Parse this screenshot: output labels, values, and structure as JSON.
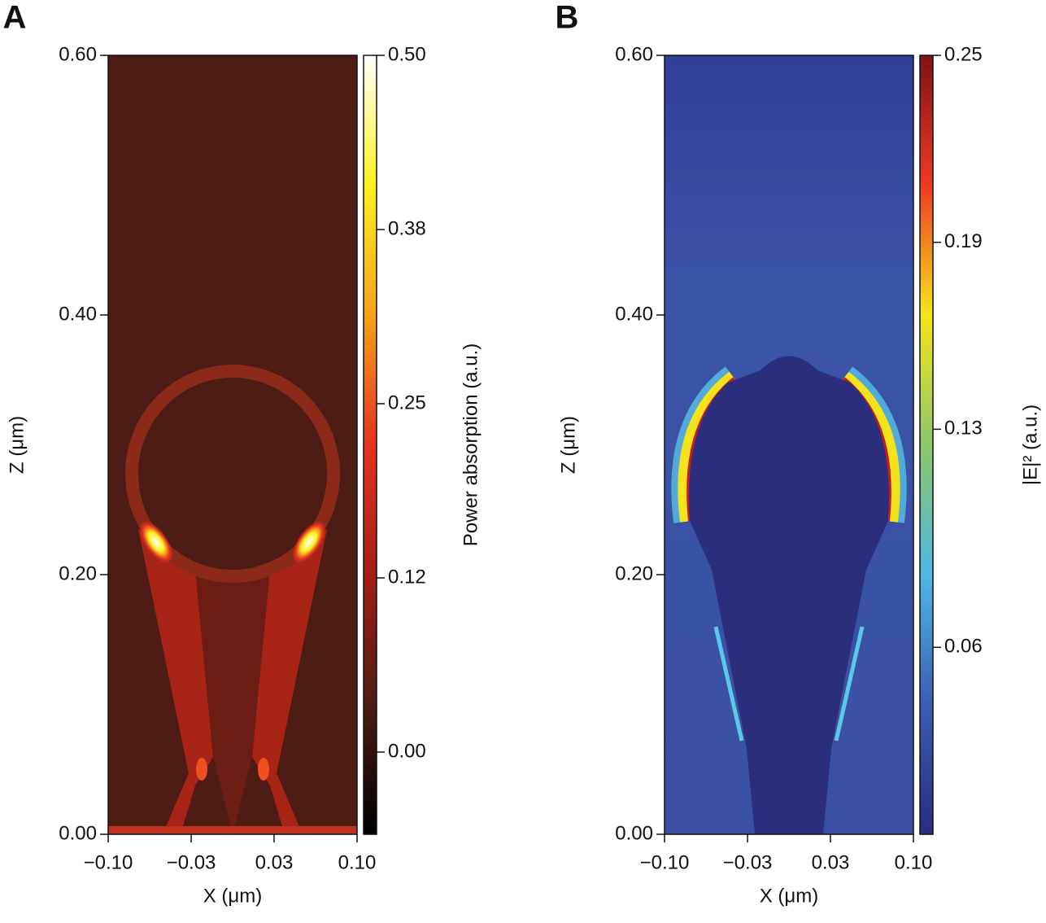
{
  "chart_data": [
    {
      "type": "heatmap",
      "panel": "A",
      "xlabel": "X (μm)",
      "ylabel": "Z (μm)",
      "colorbar_label": "Power absorption (a.u.)",
      "xlim": [
        -0.1,
        0.1
      ],
      "xticks": [
        {
          "value": -0.1,
          "label": "−0.10"
        },
        {
          "value": -0.0333,
          "label": "−0.03"
        },
        {
          "value": 0.0333,
          "label": "0.03"
        },
        {
          "value": 0.1,
          "label": "0.10"
        }
      ],
      "ylim": [
        0,
        0.6
      ],
      "yticks": [
        {
          "value": 0,
          "label": "0.00"
        },
        {
          "value": 0.2,
          "label": "0.20"
        },
        {
          "value": 0.4,
          "label": "0.40"
        },
        {
          "value": 0.6,
          "label": "0.60"
        }
      ],
      "clim": [
        -0.059,
        0.5
      ],
      "cticks": [
        {
          "value": 0,
          "label": "0.00"
        },
        {
          "value": 0.125,
          "label": "0.12"
        },
        {
          "value": 0.25,
          "label": "0.25"
        },
        {
          "value": 0.375,
          "label": "0.38"
        },
        {
          "value": 0.5,
          "label": "0.50"
        }
      ],
      "colormap": [
        "#000000",
        "#4d1c15",
        "#a51e14",
        "#e6321e",
        "#f7a11a",
        "#fdf01e",
        "#ffffff"
      ]
    },
    {
      "type": "heatmap",
      "panel": "B",
      "xlabel": "X (μm)",
      "ylabel": "Z (μm)",
      "colorbar_label": "|E|² (a.u.)",
      "xlim": [
        -0.1,
        0.1
      ],
      "xticks": [
        {
          "value": -0.1,
          "label": "−0.10"
        },
        {
          "value": -0.0333,
          "label": "−0.03"
        },
        {
          "value": 0.0333,
          "label": "0.03"
        },
        {
          "value": 0.1,
          "label": "0.10"
        }
      ],
      "ylim": [
        0,
        0.6
      ],
      "yticks": [
        {
          "value": 0,
          "label": "0.00"
        },
        {
          "value": 0.2,
          "label": "0.20"
        },
        {
          "value": 0.4,
          "label": "0.40"
        },
        {
          "value": 0.6,
          "label": "0.60"
        }
      ],
      "clim": [
        0,
        0.25
      ],
      "cticks": [
        0.06,
        0.13,
        0.19,
        0.25
      ],
      "colormap": [
        "#2b2c7e",
        "#3a5db0",
        "#4fb8e6",
        "#8dc66b",
        "#f5e51c",
        "#ee3a24",
        "#7d1416"
      ]
    }
  ]
}
